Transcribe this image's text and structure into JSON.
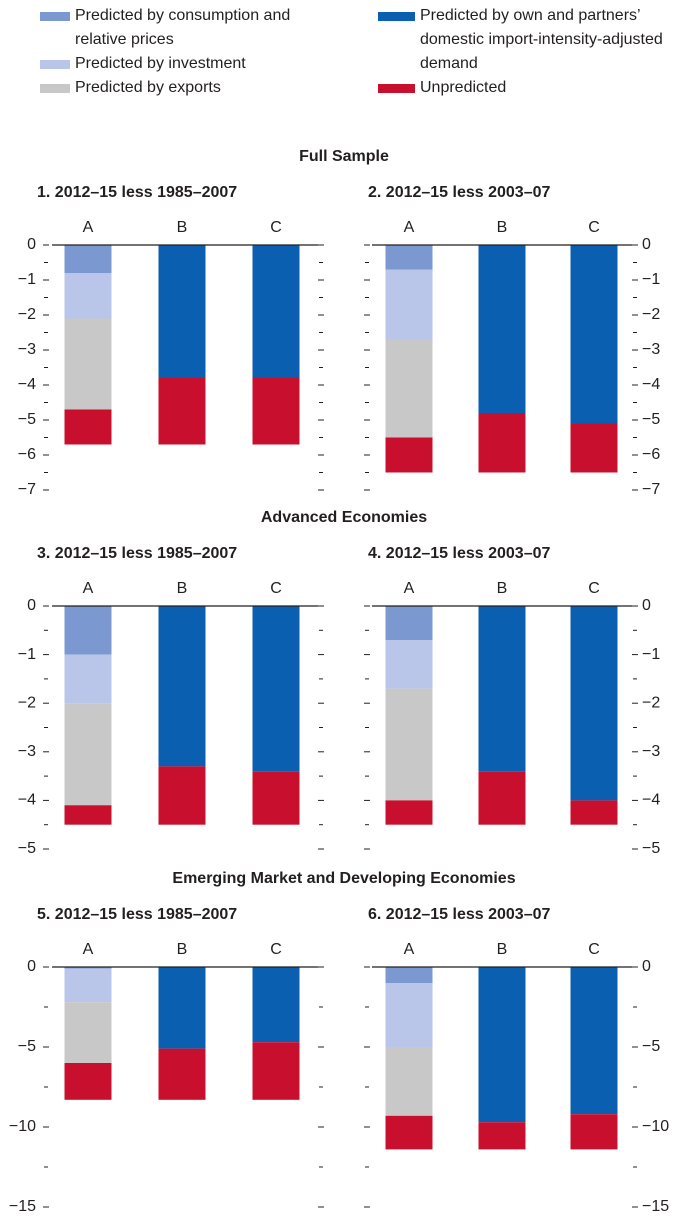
{
  "sections": [
    "Full Sample",
    "Advanced Economies",
    "Emerging Market and Developing Economies"
  ],
  "chart_data": [
    {
      "type": "bar",
      "stacked": true,
      "title": "1. 2012–15 less 1985–2007",
      "categories": [
        "A",
        "B",
        "C"
      ],
      "series": [
        {
          "name": "Predicted by consumption and relative prices",
          "color": "#7b98d1",
          "values": [
            -0.8,
            null,
            null
          ]
        },
        {
          "name": "Predicted by investment",
          "color": "#b9c6ea",
          "values": [
            -1.3,
            null,
            null
          ]
        },
        {
          "name": "Predicted by exports",
          "color": "#c8c8c8",
          "values": [
            -2.6,
            null,
            null
          ]
        },
        {
          "name": "Predicted by own and partners’ domestic import-intensity-adjusted demand",
          "color": "#0b5fb0",
          "values": [
            null,
            -3.8,
            -3.8
          ]
        },
        {
          "name": "Unpredicted",
          "color": "#c8102e",
          "values": [
            -1.0,
            -1.9,
            -1.9
          ]
        }
      ],
      "ylim": [
        0,
        -7
      ],
      "yticks": [
        0,
        {
          "value": -1,
          "label": "−1"
        },
        {
          "value": -2,
          "label": "−2"
        },
        {
          "value": -3,
          "label": "−3"
        },
        {
          "value": -4,
          "label": "−4"
        },
        {
          "value": -5,
          "label": "−5"
        },
        {
          "value": -6,
          "label": "−6"
        },
        {
          "value": -7,
          "label": "−7"
        }
      ],
      "minor_yticks": [
        -0.5,
        -1.5,
        -2.5,
        -3.5,
        -4.5,
        -5.5,
        -6.5
      ]
    },
    {
      "type": "bar",
      "stacked": true,
      "title": "2. 2012–15 less 2003–07",
      "categories": [
        "A",
        "B",
        "C"
      ],
      "series": [
        {
          "name": "Predicted by consumption and relative prices",
          "color": "#7b98d1",
          "values": [
            -0.7,
            null,
            null
          ]
        },
        {
          "name": "Predicted by investment",
          "color": "#b9c6ea",
          "values": [
            -2.0,
            null,
            null
          ]
        },
        {
          "name": "Predicted by exports",
          "color": "#c8c8c8",
          "values": [
            -2.8,
            null,
            null
          ]
        },
        {
          "name": "Predicted by own and partners’ domestic import-intensity-adjusted demand",
          "color": "#0b5fb0",
          "values": [
            null,
            -4.8,
            -5.1
          ]
        },
        {
          "name": "Unpredicted",
          "color": "#c8102e",
          "values": [
            -1.0,
            -1.7,
            -1.4
          ]
        }
      ],
      "ylim": [
        0,
        -7
      ],
      "yticks": [
        0,
        {
          "value": -1,
          "label": "−1"
        },
        {
          "value": -2,
          "label": "−2"
        },
        {
          "value": -3,
          "label": "−3"
        },
        {
          "value": -4,
          "label": "−4"
        },
        {
          "value": -5,
          "label": "−5"
        },
        {
          "value": -6,
          "label": "−6"
        },
        {
          "value": -7,
          "label": "−7"
        }
      ],
      "minor_yticks": [
        -0.5,
        -1.5,
        -2.5,
        -3.5,
        -4.5,
        -5.5,
        -6.5
      ]
    },
    {
      "type": "bar",
      "stacked": true,
      "title": "3. 2012–15 less 1985–2007",
      "categories": [
        "A",
        "B",
        "C"
      ],
      "series": [
        {
          "name": "Predicted by consumption and relative prices",
          "color": "#7b98d1",
          "values": [
            -1.0,
            null,
            null
          ]
        },
        {
          "name": "Predicted by investment",
          "color": "#b9c6ea",
          "values": [
            -1.0,
            null,
            null
          ]
        },
        {
          "name": "Predicted by exports",
          "color": "#c8c8c8",
          "values": [
            -2.1,
            null,
            null
          ]
        },
        {
          "name": "Predicted by own and partners’ domestic import-intensity-adjusted demand",
          "color": "#0b5fb0",
          "values": [
            null,
            -3.3,
            -3.4
          ]
        },
        {
          "name": "Unpredicted",
          "color": "#c8102e",
          "values": [
            -0.4,
            -1.2,
            -1.1
          ]
        }
      ],
      "ylim": [
        0,
        -5
      ],
      "yticks": [
        0,
        {
          "value": -1,
          "label": "−1"
        },
        {
          "value": -2,
          "label": "−2"
        },
        {
          "value": -3,
          "label": "−3"
        },
        {
          "value": -4,
          "label": "−4"
        },
        {
          "value": -5,
          "label": "−5"
        }
      ],
      "minor_yticks": [
        -0.5,
        -1.5,
        -2.5,
        -3.5,
        -4.5
      ]
    },
    {
      "type": "bar",
      "stacked": true,
      "title": "4. 2012–15 less 2003–07",
      "categories": [
        "A",
        "B",
        "C"
      ],
      "series": [
        {
          "name": "Predicted by consumption and relative prices",
          "color": "#7b98d1",
          "values": [
            -0.7,
            null,
            null
          ]
        },
        {
          "name": "Predicted by investment",
          "color": "#b9c6ea",
          "values": [
            -1.0,
            null,
            null
          ]
        },
        {
          "name": "Predicted by exports",
          "color": "#c8c8c8",
          "values": [
            -2.3,
            null,
            null
          ]
        },
        {
          "name": "Predicted by own and partners’ domestic import-intensity-adjusted demand",
          "color": "#0b5fb0",
          "values": [
            null,
            -3.4,
            -4.0
          ]
        },
        {
          "name": "Unpredicted",
          "color": "#c8102e",
          "values": [
            -0.5,
            -1.1,
            -0.5
          ]
        }
      ],
      "ylim": [
        0,
        -5
      ],
      "yticks": [
        0,
        {
          "value": -1,
          "label": "−1"
        },
        {
          "value": -2,
          "label": "−2"
        },
        {
          "value": -3,
          "label": "−3"
        },
        {
          "value": -4,
          "label": "−4"
        },
        {
          "value": -5,
          "label": "−5"
        }
      ],
      "minor_yticks": [
        -0.5,
        -1.5,
        -2.5,
        -3.5,
        -4.5
      ]
    },
    {
      "type": "bar",
      "stacked": true,
      "title": "5. 2012–15 less 1985–2007",
      "categories": [
        "A",
        "B",
        "C"
      ],
      "series": [
        {
          "name": "Predicted by consumption and relative prices",
          "color": "#7b98d1",
          "values": [
            -0.1,
            null,
            null
          ]
        },
        {
          "name": "Predicted by investment",
          "color": "#b9c6ea",
          "values": [
            -2.1,
            null,
            null
          ]
        },
        {
          "name": "Predicted by exports",
          "color": "#c8c8c8",
          "values": [
            -3.8,
            null,
            null
          ]
        },
        {
          "name": "Predicted by own and partners’ domestic import-intensity-adjusted demand",
          "color": "#0b5fb0",
          "values": [
            null,
            -5.1,
            -4.7
          ]
        },
        {
          "name": "Unpredicted",
          "color": "#c8102e",
          "values": [
            -2.3,
            -3.2,
            -3.6
          ]
        }
      ],
      "ylim": [
        0,
        -15
      ],
      "yticks": [
        0,
        {
          "value": -5,
          "label": "−5"
        },
        {
          "value": -10,
          "label": "−10"
        },
        {
          "value": -15,
          "label": "−15"
        }
      ],
      "minor_yticks": [
        -2.5,
        -7.5,
        -12.5
      ]
    },
    {
      "type": "bar",
      "stacked": true,
      "title": "6. 2012–15 less 2003–07",
      "categories": [
        "A",
        "B",
        "C"
      ],
      "series": [
        {
          "name": "Predicted by consumption and relative prices",
          "color": "#7b98d1",
          "values": [
            -1.0,
            null,
            null
          ]
        },
        {
          "name": "Predicted by investment",
          "color": "#b9c6ea",
          "values": [
            -4.0,
            null,
            null
          ]
        },
        {
          "name": "Predicted by exports",
          "color": "#c8c8c8",
          "values": [
            -4.3,
            null,
            null
          ]
        },
        {
          "name": "Predicted by own and partners’ domestic import-intensity-adjusted demand",
          "color": "#0b5fb0",
          "values": [
            null,
            -9.7,
            -9.2
          ]
        },
        {
          "name": "Unpredicted",
          "color": "#c8102e",
          "values": [
            -2.1,
            -1.7,
            -2.2
          ]
        }
      ],
      "ylim": [
        0,
        -15
      ],
      "yticks": [
        0,
        {
          "value": -5,
          "label": "−5"
        },
        {
          "value": -10,
          "label": "−10"
        },
        {
          "value": -15,
          "label": "−15"
        }
      ],
      "minor_yticks": [
        -2.5,
        -7.5,
        -12.5
      ]
    }
  ]
}
